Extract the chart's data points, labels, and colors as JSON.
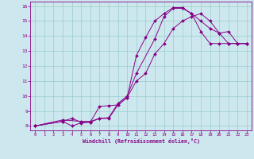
{
  "xlabel": "Windchill (Refroidissement éolien,°C)",
  "bg_color": "#cce8ee",
  "line_color": "#880088",
  "grid_color": "#99cccc",
  "xlim": [
    -0.5,
    23.5
  ],
  "ylim": [
    7.7,
    16.3
  ],
  "xticks": [
    0,
    1,
    2,
    3,
    4,
    5,
    6,
    7,
    8,
    9,
    10,
    11,
    12,
    13,
    14,
    15,
    16,
    17,
    18,
    19,
    20,
    21,
    22,
    23
  ],
  "yticks": [
    8,
    9,
    10,
    11,
    12,
    13,
    14,
    15,
    16
  ],
  "curve1_x": [
    0,
    3,
    4,
    5,
    6,
    7,
    8,
    9,
    10,
    11,
    13,
    14,
    15,
    16,
    17,
    18,
    19,
    20,
    21,
    22,
    23
  ],
  "curve1_y": [
    8.0,
    8.3,
    8.5,
    8.25,
    8.25,
    8.5,
    8.55,
    9.5,
    10.0,
    11.5,
    13.8,
    15.3,
    15.85,
    15.85,
    15.5,
    15.0,
    14.5,
    14.2,
    13.5,
    13.5,
    13.5
  ],
  "curve2_x": [
    0,
    3,
    4,
    5,
    6,
    7,
    8,
    9,
    10,
    11,
    12,
    13,
    14,
    15,
    16,
    17,
    18,
    19,
    20,
    21,
    22,
    23
  ],
  "curve2_y": [
    8.0,
    8.3,
    8.0,
    8.2,
    8.25,
    9.3,
    9.35,
    9.4,
    9.9,
    11.0,
    11.5,
    12.8,
    13.5,
    14.5,
    15.0,
    15.3,
    15.5,
    15.0,
    14.2,
    14.3,
    13.5,
    13.5
  ],
  "curve3_x": [
    0,
    3,
    5,
    6,
    7,
    8,
    9,
    10,
    11,
    12,
    13,
    14,
    15,
    16,
    17,
    18,
    19,
    20,
    21,
    22,
    23
  ],
  "curve3_y": [
    8.0,
    8.4,
    8.3,
    8.3,
    8.5,
    8.5,
    9.4,
    9.9,
    12.7,
    13.9,
    15.0,
    15.5,
    15.9,
    15.9,
    15.5,
    14.3,
    13.5,
    13.5,
    13.5,
    13.5,
    13.5
  ]
}
